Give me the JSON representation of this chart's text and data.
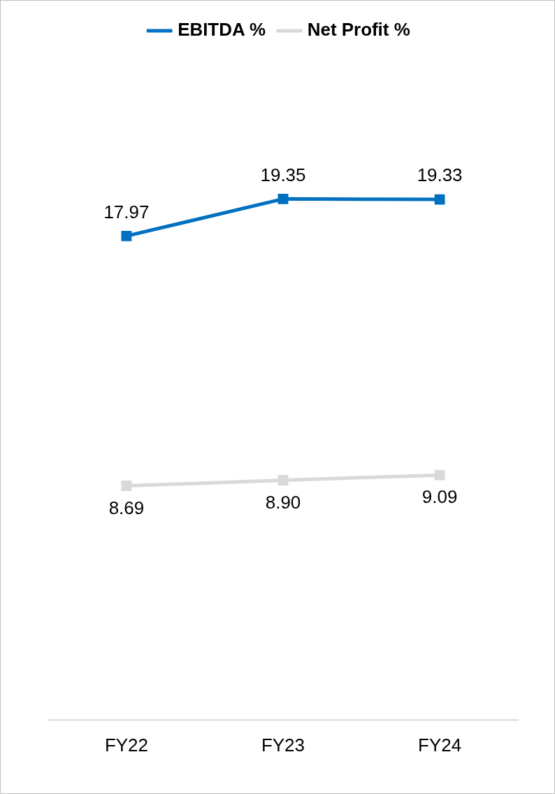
{
  "chart_data": {
    "type": "line",
    "categories": [
      "FY22",
      "FY23",
      "FY24"
    ],
    "series": [
      {
        "name": "EBITDA %",
        "color": "#0070c0",
        "values": [
          17.97,
          19.35,
          19.33
        ],
        "value_labels": [
          "17.97",
          "19.35",
          "19.33"
        ]
      },
      {
        "name": "Net Profit %",
        "color": "#d9d9d9",
        "values": [
          8.69,
          8.9,
          9.09
        ],
        "value_labels": [
          "8.69",
          "8.90",
          "9.09"
        ]
      }
    ],
    "tick_labels": "x",
    "legend": "top",
    "marker": "square",
    "line_style": "solid",
    "grid": false
  }
}
